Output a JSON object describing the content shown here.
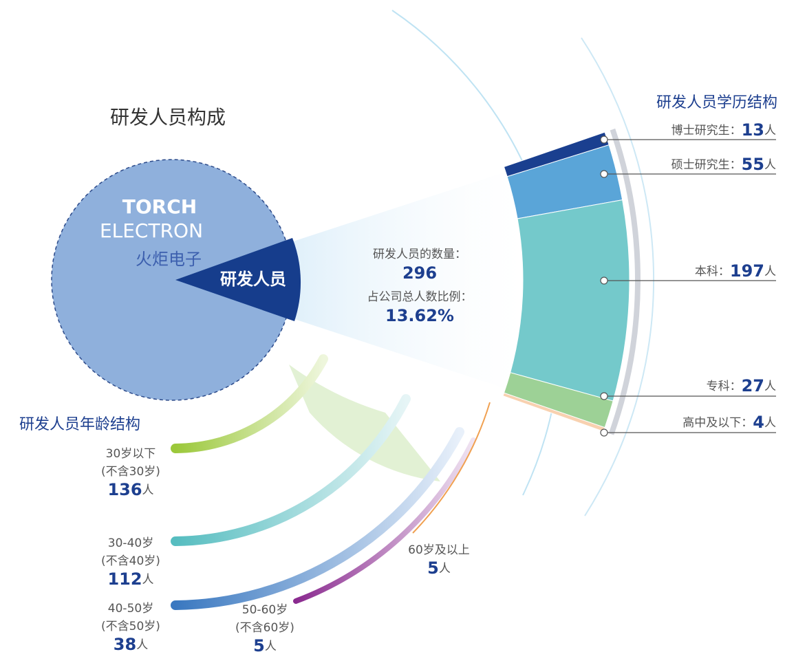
{
  "title": "研发人员构成",
  "company": {
    "name_en_1": "TORCH",
    "name_en_2": "ELECTRON",
    "name_cn": "火炬电子"
  },
  "slice_label": "研发人员",
  "summary": {
    "count_label": "研发人员的数量：",
    "count": 296,
    "ratio_label": "占公司总人数比例：",
    "ratio": "13.62%"
  },
  "education": {
    "title": "研发人员学历结构",
    "unit": "人",
    "items": [
      {
        "label": "博士研究生：",
        "value": 13,
        "color": "#1a3f8f"
      },
      {
        "label": "硕士研究生：",
        "value": 55,
        "color": "#5aa5d8"
      },
      {
        "label": "本科：",
        "value": 197,
        "color": "#74c9cb"
      },
      {
        "label": "专科：",
        "value": 27,
        "color": "#9dd196"
      },
      {
        "label": "高中及以下：",
        "value": 4,
        "color": "#f8d1b0"
      }
    ]
  },
  "age": {
    "title": "研发人员年龄结构",
    "unit": "人",
    "items": [
      {
        "label": "30岁以下",
        "sub": "(不含30岁)",
        "value": 136
      },
      {
        "label": "30-40岁",
        "sub": "(不含40岁)",
        "value": 112
      },
      {
        "label": "40-50岁",
        "sub": "(不含50岁)",
        "value": 38
      },
      {
        "label": "50-60岁",
        "sub": "(不含60岁)",
        "value": 5
      },
      {
        "label": "60岁及以上",
        "value": 5
      }
    ]
  }
}
